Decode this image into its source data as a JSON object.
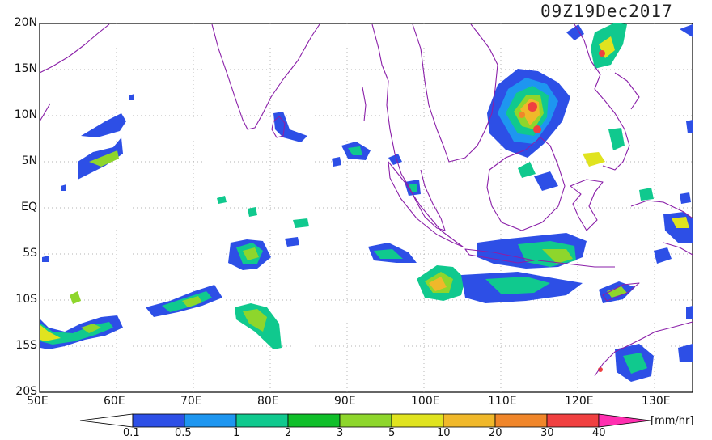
{
  "title": "09Z19Dec2017",
  "lat_labels": [
    "20N",
    "15N",
    "10N",
    "5N",
    "EQ",
    "5S",
    "10S",
    "15S",
    "20S"
  ],
  "lon_labels": [
    "50E",
    "60E",
    "70E",
    "80E",
    "90E",
    "100E",
    "110E",
    "120E",
    "130E"
  ],
  "colorbar": {
    "units": "[mm/hr]",
    "labels": [
      "0.1",
      "0.5",
      "1",
      "2",
      "3",
      "5",
      "10",
      "20",
      "30",
      "40"
    ],
    "colors": [
      "#2d4fe6",
      "#1e96f0",
      "#10c98e",
      "#10bf2a",
      "#8ed62c",
      "#e0e31f",
      "#f0b82a",
      "#f0862a",
      "#f04040",
      "#ff2fb0"
    ]
  }
}
